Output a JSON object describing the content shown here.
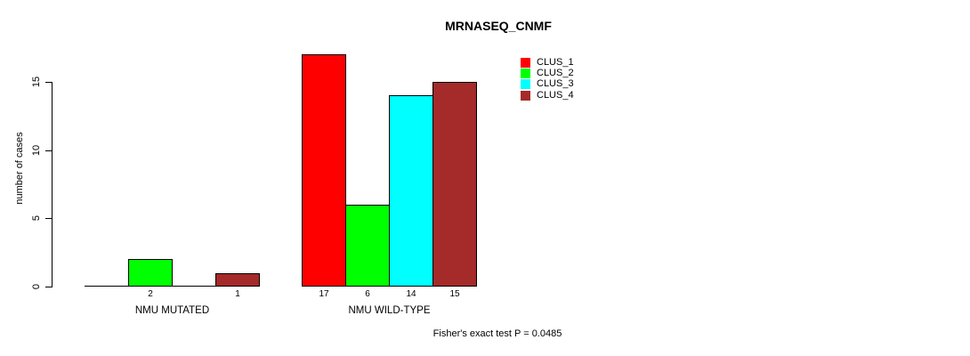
{
  "title": "MRNASEQ_CNMF",
  "y_axis_label": "number of cases",
  "footnote": "Fisher's exact test P = 0.0485",
  "chart_data": {
    "type": "bar",
    "title": "MRNASEQ_CNMF",
    "xlabel": "",
    "ylabel": "number of cases",
    "categories": [
      "NMU MUTATED",
      "NMU WILD-TYPE"
    ],
    "series": [
      {
        "name": "CLUS_1",
        "color": "#ff0000",
        "values": [
          0,
          17
        ]
      },
      {
        "name": "CLUS_2",
        "color": "#00ff00",
        "values": [
          2,
          6
        ]
      },
      {
        "name": "CLUS_3",
        "color": "#00ffff",
        "values": [
          0,
          14
        ]
      },
      {
        "name": "CLUS_4",
        "color": "#a52a2a",
        "values": [
          1,
          15
        ]
      }
    ],
    "bar_value_labels": [
      [
        "",
        "2",
        "",
        "1"
      ],
      [
        "17",
        "6",
        "14",
        "15"
      ]
    ],
    "yticks": [
      0,
      5,
      10,
      15
    ],
    "ylim": [
      0,
      17.25
    ],
    "grid": false,
    "legend_position": "right",
    "annotation": "Fisher's exact test P = 0.0485"
  },
  "legend": {
    "items": [
      {
        "label": "CLUS_1",
        "color": "#ff0000"
      },
      {
        "label": "CLUS_2",
        "color": "#00ff00"
      },
      {
        "label": "CLUS_3",
        "color": "#00ffff"
      },
      {
        "label": "CLUS_4",
        "color": "#a52a2a"
      }
    ]
  }
}
